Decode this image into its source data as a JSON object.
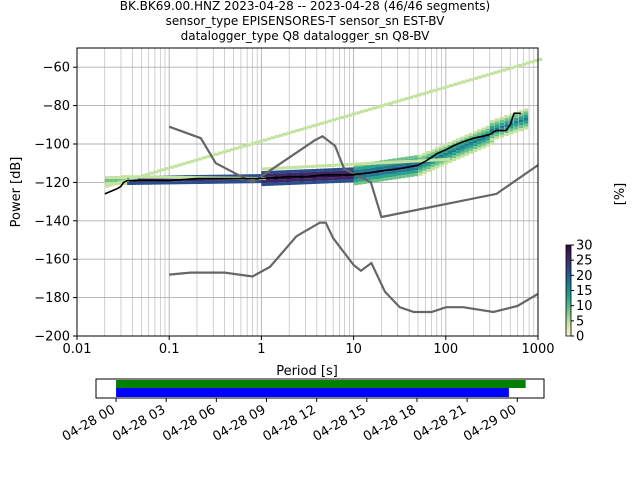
{
  "title_lines": [
    "BK.BK69.00.HNZ   2023-04-28 -- 2023-04-28  (46/46 segments)",
    "sensor_type EPISENSORES-T sensor_sn EST-BV",
    "datalogger_type Q8 datalogger_sn Q8-BV"
  ],
  "chart_data": [
    {
      "type": "heatmap",
      "xlabel": "Period [s]",
      "ylabel": "Power [dB]",
      "x_scale": "log",
      "xlim": [
        0.01,
        1000
      ],
      "ylim": [
        -200,
        -50
      ],
      "x_ticks": [
        0.01,
        0.1,
        1,
        10,
        100,
        1000
      ],
      "x_tick_labels": [
        "0.01",
        "0.1",
        "1",
        "10",
        "100",
        "1000"
      ],
      "y_ticks": [
        -200,
        -180,
        -160,
        -140,
        -120,
        -100,
        -80,
        -60
      ],
      "y_tick_labels": [
        "−200",
        "−180",
        "−160",
        "−140",
        "−120",
        "−100",
        "−80",
        "−60"
      ],
      "grid": true,
      "colorbar": {
        "label": "[%]",
        "range": [
          0,
          30
        ],
        "ticks": [
          0,
          5,
          10,
          15,
          20,
          25,
          30
        ],
        "tick_labels": [
          "0",
          "5",
          "10",
          "15",
          "20",
          "25",
          "30"
        ],
        "colors": [
          "#f7f7d2",
          "#c4e3a0",
          "#6fc28a",
          "#2aa38c",
          "#1e7b8e",
          "#2a4e8c",
          "#3e2766",
          "#2a0c3e"
        ]
      },
      "mode_curve": {
        "color": "#000000",
        "x": [
          0.02,
          0.025,
          0.028,
          0.03,
          0.032,
          0.035,
          0.05,
          0.1,
          0.2,
          0.5,
          1,
          2,
          3,
          5,
          7,
          10,
          15,
          20,
          30,
          40,
          50,
          60,
          70,
          80,
          100,
          120,
          150,
          200,
          250,
          300,
          350,
          400,
          450,
          500,
          550,
          600,
          650
        ],
        "y": [
          -126,
          -124,
          -123,
          -122,
          -120,
          -119,
          -119,
          -119,
          -118,
          -118,
          -118,
          -117,
          -117,
          -116,
          -116,
          -116,
          -115,
          -114,
          -113,
          -112,
          -111,
          -109,
          -107,
          -105,
          -103,
          -101,
          -99,
          -97,
          -96,
          -95,
          -93,
          -93,
          -93,
          -90,
          -84,
          -84,
          -84
        ]
      },
      "noise_models": [
        {
          "name": "upper",
          "color": "#666666",
          "x": [
            0.1,
            0.22,
            0.32,
            0.8,
            3.8,
            4.6,
            6.3,
            7.9,
            15.4,
            20,
            354,
            1000
          ],
          "y": [
            -91,
            -97,
            -110,
            -120,
            -98,
            -96,
            -101,
            -113,
            -120,
            -138,
            -126,
            -111
          ]
        },
        {
          "name": "lower",
          "color": "#666666",
          "x": [
            0.1,
            0.17,
            0.4,
            0.8,
            1.24,
            2.4,
            4.3,
            5,
            6,
            10,
            12,
            15.6,
            21.9,
            31.6,
            45,
            70,
            101,
            154,
            328,
            600,
            1000
          ],
          "y": [
            -168,
            -167,
            -167,
            -169,
            -164,
            -148,
            -141,
            -141,
            -149,
            -163,
            -166,
            -162,
            -177,
            -185,
            -187.5,
            -187.5,
            -185,
            -185,
            -187.5,
            -184.4,
            -178
          ]
        }
      ],
      "bands": [
        {
          "x_range": [
            0.02,
            0.035
          ],
          "y_center": [
            -119,
            -119
          ],
          "spread": 2,
          "level": 2
        },
        {
          "x_range": [
            0.035,
            1
          ],
          "y_center": [
            -119,
            -118
          ],
          "spread": 1,
          "level": 6
        },
        {
          "x_range": [
            1,
            10
          ],
          "y_center": [
            -118,
            -116
          ],
          "spread": 2,
          "level": 7
        },
        {
          "x_range": [
            10,
            50
          ],
          "y_center": [
            -116,
            -111
          ],
          "spread": 3,
          "level": 5
        },
        {
          "x_range": [
            50,
            300
          ],
          "y_center": [
            -111,
            -95
          ],
          "spread": 4,
          "level": 4
        },
        {
          "x_range": [
            300,
            700
          ],
          "y_center": [
            -93,
            -87
          ],
          "spread": 5,
          "level": 4
        },
        {
          "x_range": [
            0.02,
            1000
          ],
          "y_center": [
            -122,
            -56
          ],
          "spread": 1,
          "level": 1
        },
        {
          "x_range": [
            0.03,
            1
          ],
          "y_center": [
            -117,
            -118
          ],
          "spread": 2,
          "level": 1
        },
        {
          "x_range": [
            1,
            100
          ],
          "y_center": [
            -113,
            -108
          ],
          "spread": 2,
          "level": 1
        }
      ]
    },
    {
      "type": "timeline",
      "x_tick_labels": [
        "04-28 00",
        "04-28 03",
        "04-28 06",
        "04-28 09",
        "04-28 12",
        "04-28 15",
        "04-28 18",
        "04-28 21",
        "04-29 00"
      ],
      "x_range_hours": [
        -1.2,
        25.6
      ],
      "tick_hours": [
        0,
        3,
        6,
        9,
        12,
        15,
        18,
        21,
        24
      ],
      "green_span_hours": [
        0,
        24.5
      ],
      "blue_span_hours": [
        0,
        23.5
      ],
      "green_color": "#008000",
      "blue_color": "#0000ff"
    }
  ]
}
